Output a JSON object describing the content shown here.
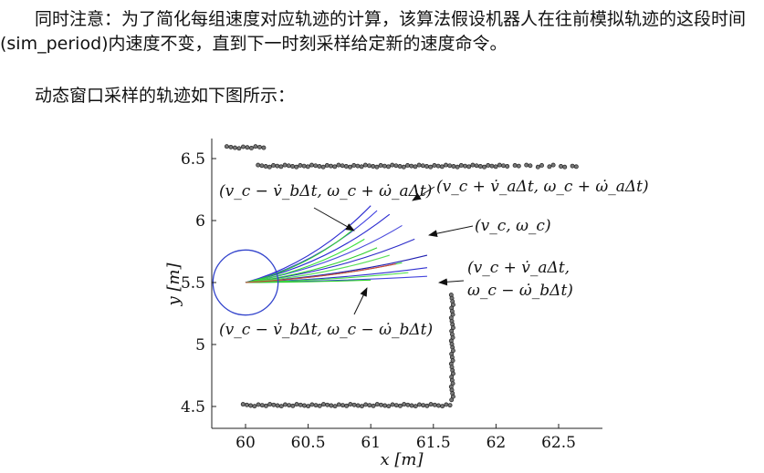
{
  "text": {
    "paragraph1": "同时注意：为了简化每组速度对应轨迹的计算，该算法假设机器人在往前模拟轨迹的这段时间(sim_period)内速度不变，直到下一时刻采样给定新的速度命令。",
    "paragraph2": "动态窗口采样的轨迹如下图所示："
  },
  "chart_data": {
    "type": "line",
    "title": "",
    "xlabel": "x [m]",
    "ylabel": "y [m]",
    "xlim": [
      59.75,
      62.85
    ],
    "ylim": [
      4.43,
      6.7
    ],
    "xticks": [
      60,
      60.5,
      61,
      61.5,
      62,
      62.5
    ],
    "xtick_labels": [
      "60",
      "60.5",
      "61",
      "61.5",
      "62",
      "62.5"
    ],
    "yticks": [
      4.5,
      5,
      5.5,
      6,
      6.5
    ],
    "ytick_labels": [
      "4.5",
      "5",
      "5.5",
      "6",
      "6.5"
    ],
    "grid": false,
    "robot": {
      "x": 60.0,
      "y": 5.5,
      "radius": 0.26,
      "color": "#3344cc"
    },
    "trajectory_origin": {
      "x": 60.0,
      "y": 5.5
    },
    "trajectories": [
      {
        "end": [
          61.0,
          6.12
        ],
        "color": "#2b2bd0"
      },
      {
        "end": [
          61.05,
          6.08
        ],
        "color": "#3a3ae0"
      },
      {
        "end": [
          61.15,
          6.05
        ],
        "color": "#2b2bd0"
      },
      {
        "end": [
          61.25,
          5.96
        ],
        "color": "#4b4bdd"
      },
      {
        "end": [
          61.35,
          5.85
        ],
        "color": "#2a2ac8"
      },
      {
        "end": [
          61.45,
          5.72
        ],
        "color": "#1f1fb0"
      },
      {
        "end": [
          61.45,
          5.62
        ],
        "color": "#2f2fd0"
      },
      {
        "end": [
          61.45,
          5.55
        ],
        "color": "#4444dd"
      },
      {
        "end": [
          60.85,
          5.92
        ],
        "color": "#2fd02f"
      },
      {
        "end": [
          60.95,
          5.85
        ],
        "color": "#3ae03a"
      },
      {
        "end": [
          61.05,
          5.78
        ],
        "color": "#2fcf2f"
      },
      {
        "end": [
          61.15,
          5.72
        ],
        "color": "#5ae05a"
      },
      {
        "end": [
          61.25,
          5.66
        ],
        "color": "#2ad02a"
      },
      {
        "end": [
          61.3,
          5.58
        ],
        "color": "#44dd44"
      },
      {
        "end": [
          61.0,
          5.52
        ],
        "color": "#2fcf2f"
      },
      {
        "end": [
          61.2,
          5.65
        ],
        "color": "#d04040"
      }
    ],
    "obstacles": {
      "top_segment": {
        "x_start": 60.1,
        "x_end": 62.7,
        "y": 6.44
      },
      "top_left_segment": {
        "x_start": 59.85,
        "x_end": 60.15,
        "y": 6.59
      },
      "right_vertical": {
        "x": 61.65,
        "y_start": 4.55,
        "y_end": 5.4
      },
      "bottom_segment": {
        "x_start": 59.98,
        "x_end": 61.65,
        "y": 4.51
      }
    },
    "annotations": [
      {
        "label": "(v_c − v̇_bΔt, ω_c + ω̇_aΔt)"
      },
      {
        "label": "(v_c + v̇_aΔt, ω_c + ω̇_aΔt)"
      },
      {
        "label": "(v_c, ω_c)"
      },
      {
        "label": "(v_c + v̇_aΔt,"
      },
      {
        "label": "ω_c − ω̇_bΔt)"
      },
      {
        "label": "(v_c − v̇_bΔt, ω_c − ω̇_bΔt)"
      }
    ]
  }
}
